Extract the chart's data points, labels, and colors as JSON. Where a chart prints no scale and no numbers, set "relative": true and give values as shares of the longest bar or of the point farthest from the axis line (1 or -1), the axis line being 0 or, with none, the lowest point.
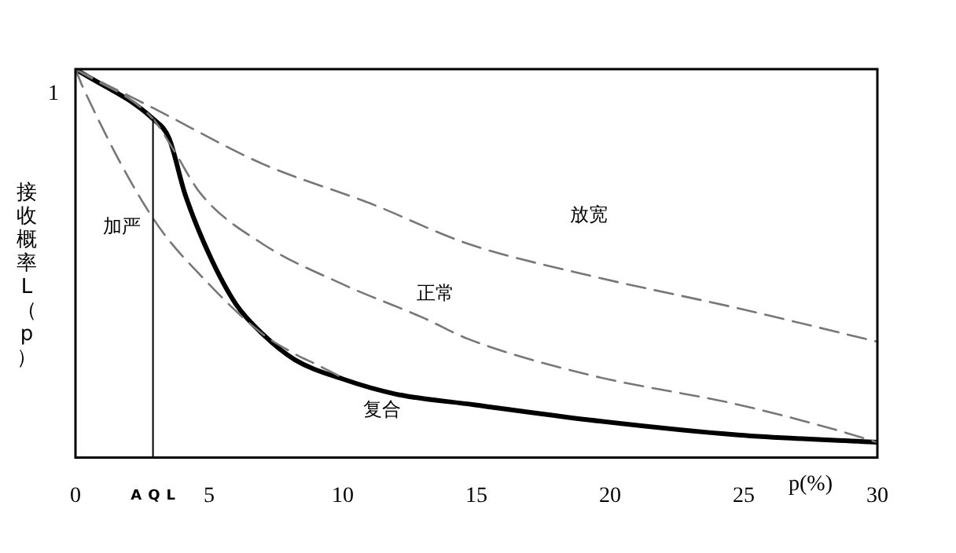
{
  "chart_data": {
    "type": "line",
    "relative": true,
    "xlabel": "p(%)",
    "ylabel": "接收概率L（p）",
    "xlim": [
      0,
      30
    ],
    "xticks": [
      0,
      5,
      10,
      15,
      20,
      25,
      30
    ],
    "grid": false,
    "legend": false,
    "marker": "none",
    "series": [
      {
        "name": "放宽",
        "color": "#777777",
        "line_style": "dashed",
        "x": [
          0,
          2.9,
          7.0,
          11.0,
          14.7,
          19.2,
          24.8,
          30
        ],
        "values": [
          1,
          0.9,
          0.756,
          0.655,
          0.55,
          0.469,
          0.384,
          0.298
        ]
      },
      {
        "name": "正常",
        "color": "#777777",
        "line_style": "dashed",
        "x": [
          0,
          2.9,
          3.6,
          4.7,
          7.0,
          10.0,
          13.0,
          14.7,
          19.2,
          24.8,
          28.3,
          30
        ],
        "values": [
          1,
          0.872,
          0.8,
          0.678,
          0.55,
          0.446,
          0.36,
          0.305,
          0.213,
          0.136,
          0.074,
          0.039
        ]
      },
      {
        "name": "加严",
        "color": "#777777",
        "line_style": "dashed",
        "x": [
          0,
          0.3,
          2.9,
          5.0,
          7.0,
          8.2,
          9.0,
          10.0
        ],
        "values": [
          1,
          0.95,
          0.616,
          0.446,
          0.318,
          0.267,
          0.24,
          0.205
        ]
      },
      {
        "name": "复合",
        "color": "#000000",
        "line_style": "solid",
        "x": [
          0,
          2.9,
          3.5,
          4.1,
          5.0,
          6.0,
          7.0,
          8.2,
          10.0,
          12.0,
          14.9,
          19.2,
          24.8,
          30
        ],
        "values": [
          1,
          0.872,
          0.822,
          0.678,
          0.523,
          0.395,
          0.318,
          0.252,
          0.202,
          0.163,
          0.136,
          0.097,
          0.058,
          0.039
        ]
      }
    ],
    "ref_lines": [
      {
        "axis": "x",
        "value": 2.9,
        "label": "AQL",
        "color": "#000000"
      }
    ],
    "annotations": [
      "1"
    ]
  }
}
